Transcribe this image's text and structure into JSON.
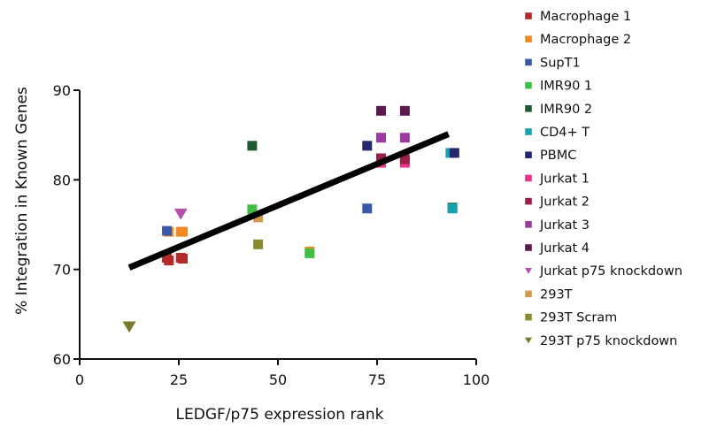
{
  "chart_data": {
    "type": "scatter",
    "xlabel": "LEDGF/p75 expression rank",
    "ylabel": "% Integration in Known Genes",
    "xlim": [
      0,
      100
    ],
    "ylim": [
      60,
      90
    ],
    "x_ticks": [
      0,
      25,
      50,
      75,
      100
    ],
    "y_ticks": [
      60,
      70,
      80,
      90
    ],
    "x_tick_labels": [
      "0",
      "25",
      "50",
      "75",
      "100"
    ],
    "y_tick_labels": [
      "60",
      "70",
      "80",
      "90"
    ],
    "grid": false,
    "legend_position": "right",
    "regression_line": {
      "x": [
        12.5,
        93
      ],
      "y": [
        70.2,
        85.1
      ],
      "color": "#000000"
    },
    "series": [
      {
        "name": "Macrophage 1",
        "color": "#b22a2a",
        "marker": "square",
        "points": [
          [
            22.5,
            71.0
          ],
          [
            25.5,
            71.3
          ],
          [
            26.0,
            71.2
          ],
          [
            22.0,
            71.3
          ]
        ]
      },
      {
        "name": "Macrophage 2",
        "color": "#f08a24",
        "marker": "square",
        "points": [
          [
            22.5,
            74.2
          ],
          [
            25.5,
            74.2
          ],
          [
            26.0,
            74.2
          ],
          [
            58.0,
            72.0
          ]
        ]
      },
      {
        "name": "SupT1",
        "color": "#3b57a8",
        "marker": "square",
        "points": [
          [
            22.0,
            74.3
          ],
          [
            72.5,
            76.8
          ]
        ]
      },
      {
        "name": "IMR90 1",
        "color": "#3fbf46",
        "marker": "square",
        "points": [
          [
            43.5,
            76.7
          ],
          [
            58.0,
            71.8
          ]
        ]
      },
      {
        "name": "IMR90 2",
        "color": "#1f5a33",
        "marker": "square",
        "points": [
          [
            43.5,
            83.8
          ],
          [
            94.0,
            76.9
          ]
        ]
      },
      {
        "name": "CD4+ T",
        "color": "#1aa0b0",
        "marker": "square",
        "points": [
          [
            94.0,
            76.8
          ],
          [
            93.5,
            83.0
          ]
        ]
      },
      {
        "name": "PBMC",
        "color": "#23286b",
        "marker": "square",
        "points": [
          [
            72.5,
            83.8
          ],
          [
            94.5,
            83.0
          ]
        ]
      },
      {
        "name": "Jurkat 1",
        "color": "#e8348a",
        "marker": "square",
        "points": [
          [
            76.0,
            81.9
          ],
          [
            82.0,
            81.9
          ]
        ]
      },
      {
        "name": "Jurkat 2",
        "color": "#9c1f4a",
        "marker": "square",
        "points": [
          [
            76.0,
            82.4
          ],
          [
            82.0,
            82.3
          ]
        ]
      },
      {
        "name": "Jurkat 3",
        "color": "#9b3ba0",
        "marker": "square",
        "points": [
          [
            76.0,
            84.7
          ],
          [
            82.0,
            84.7
          ]
        ]
      },
      {
        "name": "Jurkat 4",
        "color": "#5c1a4e",
        "marker": "square",
        "points": [
          [
            76.0,
            87.7
          ],
          [
            82.0,
            87.7
          ]
        ]
      },
      {
        "name": "Jurkat p75 knockdown",
        "color": "#b64fa8",
        "marker": "triangle-down",
        "points": [
          [
            25.5,
            76.2
          ]
        ]
      },
      {
        "name": "293T",
        "color": "#d49a4c",
        "marker": "square",
        "points": [
          [
            45.0,
            75.8
          ]
        ]
      },
      {
        "name": "293T Scram",
        "color": "#8a8a30",
        "marker": "square",
        "points": [
          [
            45.0,
            72.8
          ]
        ]
      },
      {
        "name": "293T p75 knockdown",
        "color": "#7a7a2a",
        "marker": "triangle-down",
        "points": [
          [
            12.5,
            63.6
          ]
        ]
      }
    ]
  }
}
